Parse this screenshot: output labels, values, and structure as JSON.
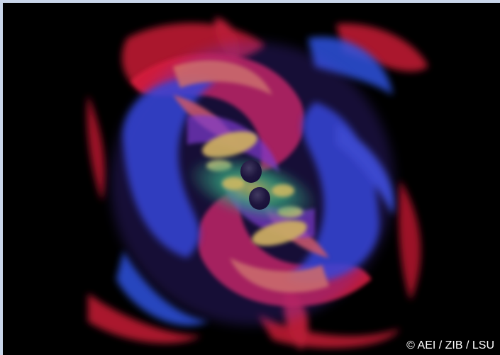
{
  "image": {
    "credit": "© AEI / ZIB / LSU",
    "palette": {
      "background": "#000000",
      "frame": "#c9d6ea",
      "red": "#d41e3c",
      "blue": "#2a4ad8",
      "orange": "#f07a4a",
      "yellow": "#f2d23a",
      "green": "#28c860",
      "black_hole": "#0a0a0a"
    }
  }
}
